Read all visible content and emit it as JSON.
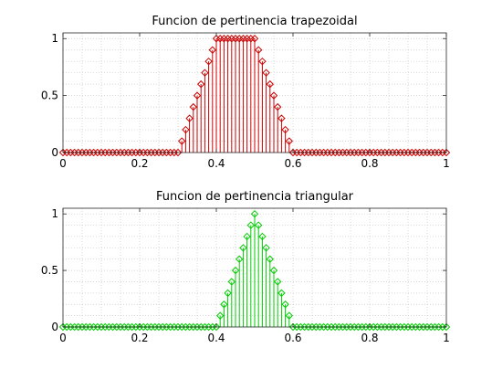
{
  "chart_data": [
    {
      "type": "stem",
      "title": "Funcion de pertinencia trapezoidal",
      "xlabel": "",
      "ylabel": "",
      "xlim": [
        0,
        1
      ],
      "ylim": [
        0,
        1.05
      ],
      "xticks": [
        0,
        0.2,
        0.4,
        0.6,
        0.8,
        1
      ],
      "xtick_labels": [
        "0",
        "0.2",
        "0.4",
        "0.6",
        "0.8",
        "1"
      ],
      "yticks": [
        0,
        0.5,
        1
      ],
      "ytick_labels": [
        "0",
        "0.5",
        "1"
      ],
      "grid": true,
      "marker": "diamond",
      "color": "#cc0000",
      "membership": {
        "shape": "trapezoid",
        "a": 0.3,
        "b": 0.4,
        "c": 0.5,
        "d": 0.6
      },
      "x_step": 0.01
    },
    {
      "type": "stem",
      "title": "Funcion de pertinencia triangular",
      "xlabel": "",
      "ylabel": "",
      "xlim": [
        0,
        1
      ],
      "ylim": [
        0,
        1.05
      ],
      "xticks": [
        0,
        0.2,
        0.4,
        0.6,
        0.8,
        1
      ],
      "xtick_labels": [
        "0",
        "0.2",
        "0.4",
        "0.6",
        "0.8",
        "1"
      ],
      "yticks": [
        0,
        0.5,
        1
      ],
      "ytick_labels": [
        "0",
        "0.5",
        "1"
      ],
      "grid": true,
      "marker": "diamond",
      "color": "#00cc00",
      "membership": {
        "shape": "triangle",
        "a": 0.4,
        "b": 0.5,
        "c": 0.6
      },
      "x_step": 0.01
    }
  ]
}
